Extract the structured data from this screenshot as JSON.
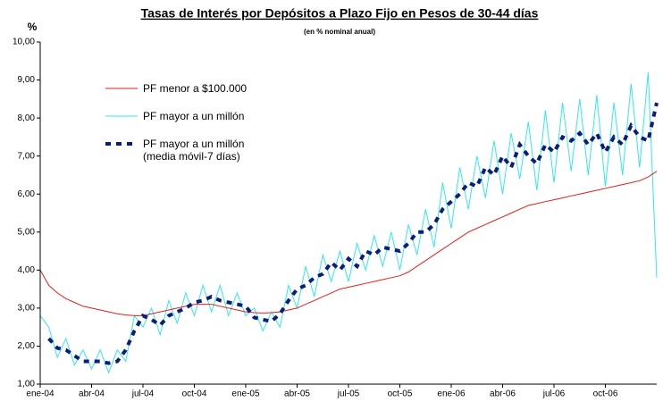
{
  "chart_data": {
    "type": "line",
    "title": "Tasas de Interés por Depósitos a Plazo Fijo en Pesos de 30-44 días",
    "subtitle": "(en % nominal anual)",
    "y_label": "%",
    "x": [
      0,
      0.5,
      1,
      1.5,
      2,
      2.5,
      3,
      3.5,
      4,
      4.5,
      5,
      5.5,
      6,
      6.5,
      7,
      7.5,
      8,
      8.5,
      9,
      9.5,
      10,
      10.5,
      11,
      11.5,
      12,
      12.5,
      13,
      13.5,
      14,
      14.5,
      15,
      15.5,
      16,
      16.5,
      17,
      17.5,
      18,
      18.5,
      19,
      19.5,
      20,
      20.5,
      21,
      21.5,
      22,
      22.5,
      23,
      23.5,
      24,
      24.5,
      25,
      25.5,
      26,
      26.5,
      27,
      27.5,
      28,
      28.5,
      29,
      29.5,
      30,
      30.5,
      31,
      31.5,
      32,
      32.5,
      33,
      33.5,
      34,
      34.5,
      35,
      35.5,
      36
    ],
    "xlim": [
      0,
      36
    ],
    "xticks": [
      {
        "value": 0,
        "label": "ene-04"
      },
      {
        "value": 3,
        "label": "abr-04"
      },
      {
        "value": 6,
        "label": "jul-04"
      },
      {
        "value": 9,
        "label": "oct-04"
      },
      {
        "value": 12,
        "label": "ene-05"
      },
      {
        "value": 15,
        "label": "abr-05"
      },
      {
        "value": 18,
        "label": "jul-05"
      },
      {
        "value": 21,
        "label": "oct-05"
      },
      {
        "value": 24,
        "label": "ene-06"
      },
      {
        "value": 27,
        "label": "abr-06"
      },
      {
        "value": 30,
        "label": "jul-06"
      },
      {
        "value": 33,
        "label": "oct-06"
      }
    ],
    "ylim": [
      1,
      10
    ],
    "yticks": [
      {
        "value": 1,
        "label": "1,00"
      },
      {
        "value": 2,
        "label": "2,00"
      },
      {
        "value": 3,
        "label": "3,00"
      },
      {
        "value": 4,
        "label": "4,00"
      },
      {
        "value": 5,
        "label": "5,00"
      },
      {
        "value": 6,
        "label": "6,00"
      },
      {
        "value": 7,
        "label": "7,00"
      },
      {
        "value": 8,
        "label": "8,00"
      },
      {
        "value": 9,
        "label": "9,00"
      },
      {
        "value": 10,
        "label": "10,00"
      }
    ],
    "series": [
      {
        "name": "PF menor a $100.000",
        "color": "#e0201b",
        "style": "solid",
        "values": [
          4.0,
          3.6,
          3.4,
          3.25,
          3.15,
          3.05,
          3.0,
          2.95,
          2.9,
          2.85,
          2.82,
          2.8,
          2.8,
          2.85,
          2.9,
          2.95,
          3.0,
          3.05,
          3.1,
          3.1,
          3.1,
          3.05,
          3.0,
          2.95,
          2.9,
          2.88,
          2.87,
          2.88,
          2.9,
          2.95,
          3.0,
          3.1,
          3.2,
          3.3,
          3.4,
          3.5,
          3.55,
          3.6,
          3.65,
          3.7,
          3.75,
          3.8,
          3.85,
          3.95,
          4.1,
          4.25,
          4.4,
          4.55,
          4.7,
          4.85,
          5.0,
          5.1,
          5.2,
          5.3,
          5.4,
          5.5,
          5.6,
          5.7,
          5.75,
          5.8,
          5.85,
          5.9,
          5.95,
          6.0,
          6.05,
          6.1,
          6.15,
          6.2,
          6.25,
          6.3,
          6.35,
          6.45,
          6.6
        ]
      },
      {
        "name": "PF mayor a un millón",
        "color": "#33e6ee",
        "style": "solid",
        "values": [
          2.8,
          2.5,
          1.7,
          2.2,
          1.5,
          1.9,
          1.4,
          1.9,
          1.3,
          1.9,
          1.6,
          2.8,
          2.5,
          3.0,
          2.3,
          3.2,
          2.6,
          3.4,
          2.8,
          3.6,
          2.9,
          3.6,
          2.8,
          3.4,
          2.8,
          3.0,
          2.4,
          2.9,
          2.5,
          3.6,
          3.0,
          4.1,
          3.3,
          4.4,
          3.7,
          4.5,
          3.7,
          4.7,
          4.0,
          4.9,
          4.1,
          5.0,
          4.0,
          5.2,
          4.4,
          5.6,
          4.6,
          6.3,
          5.1,
          6.7,
          5.6,
          7.0,
          5.9,
          7.4,
          6.0,
          7.6,
          6.4,
          7.9,
          6.1,
          8.2,
          6.3,
          8.4,
          6.6,
          8.5,
          6.5,
          8.6,
          6.2,
          8.4,
          6.5,
          8.9,
          6.7,
          9.2,
          3.8
        ]
      },
      {
        "name": "PF mayor a un millón\n(media móvil-7 días)",
        "color": "#0a1f7a",
        "style": "dashed",
        "values": [
          null,
          2.2,
          1.95,
          1.9,
          1.75,
          1.6,
          1.6,
          1.6,
          1.55,
          1.6,
          1.9,
          2.4,
          2.8,
          2.7,
          2.55,
          2.8,
          2.9,
          3.0,
          3.15,
          3.2,
          3.3,
          3.2,
          3.15,
          3.1,
          3.05,
          2.75,
          2.7,
          2.65,
          2.85,
          3.2,
          3.5,
          3.6,
          3.8,
          3.9,
          4.2,
          4.0,
          4.3,
          4.1,
          4.5,
          4.4,
          4.6,
          4.55,
          4.5,
          4.7,
          5.0,
          5.0,
          5.2,
          5.6,
          5.8,
          6.0,
          6.3,
          6.2,
          6.7,
          6.5,
          7.0,
          6.7,
          7.3,
          7.0,
          6.8,
          7.3,
          7.1,
          7.5,
          7.4,
          7.6,
          7.3,
          7.6,
          7.1,
          7.5,
          7.3,
          7.8,
          7.5,
          7.4,
          8.4
        ]
      }
    ]
  }
}
